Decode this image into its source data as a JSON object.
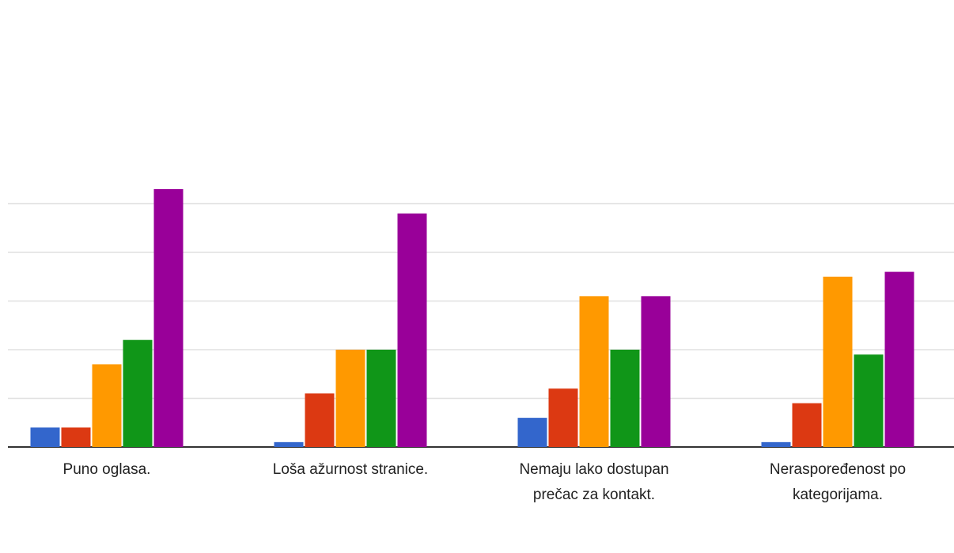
{
  "chart_data": {
    "type": "bar",
    "categories": [
      "Puno oglasa.",
      "Loša ažurnost stranice.",
      "Nemaju lako dostupan prečac za kontakt.",
      "Neraspoređenost po kategorijama."
    ],
    "series": [
      {
        "color": "#3366cc",
        "values": [
          4,
          1,
          6,
          1
        ]
      },
      {
        "color": "#dc3912",
        "values": [
          4,
          11,
          12,
          9
        ]
      },
      {
        "color": "#ff9900",
        "values": [
          17,
          20,
          31,
          35
        ]
      },
      {
        "color": "#109618",
        "values": [
          22,
          20,
          20,
          19
        ]
      },
      {
        "color": "#990099",
        "values": [
          53,
          48,
          31,
          36
        ]
      }
    ],
    "ylim": [
      0,
      60
    ],
    "yticks": [
      0,
      10,
      20,
      30,
      40,
      50
    ],
    "grid": true
  }
}
